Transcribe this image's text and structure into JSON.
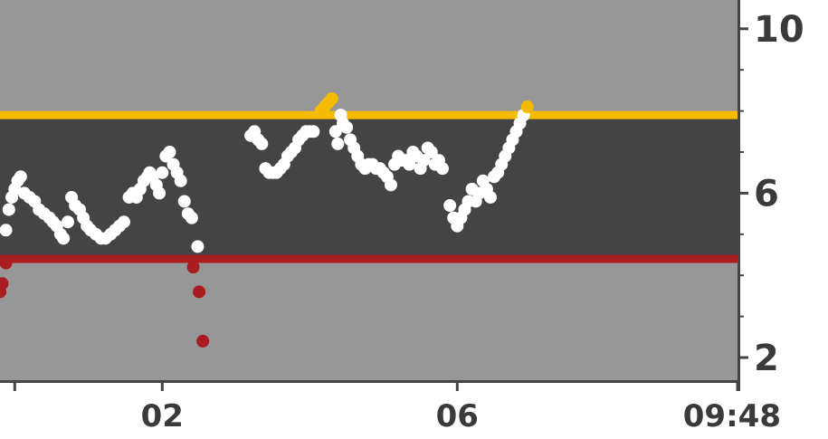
{
  "chart_data": {
    "type": "scatter",
    "title": "",
    "xlabel": "",
    "ylabel": "",
    "x_ticks": [
      {
        "value": 0.0,
        "label": ""
      },
      {
        "value": 2.0,
        "label": "02"
      },
      {
        "value": 6.0,
        "label": "06"
      },
      {
        "value": 9.8,
        "label": "09:48"
      }
    ],
    "y_ticks": [
      {
        "value": 10,
        "label": "10"
      },
      {
        "value": 6,
        "label": "6"
      },
      {
        "value": 2,
        "label": "2"
      }
    ],
    "y_minor_ticks": [
      9,
      8,
      7,
      5,
      4,
      3
    ],
    "xlim": [
      -0.2,
      9.8
    ],
    "ylim": [
      1.45,
      10.7
    ],
    "target_range": {
      "low": 4.4,
      "high": 7.9
    },
    "colors": {
      "outside_band": "#979797",
      "target_band": "#444444",
      "high_line": "#f5bb00",
      "low_line": "#a81c22",
      "in_range_point": "#ffffff",
      "high_point": "#f5bb00",
      "low_point": "#a81c22",
      "axis_text": "#3a3a3a"
    },
    "series": [
      {
        "values": [
          [
            -0.2,
            3.6
          ],
          [
            -0.17,
            3.8
          ],
          [
            -0.12,
            4.3
          ],
          [
            -0.12,
            5.1
          ],
          [
            -0.08,
            5.6
          ],
          [
            -0.04,
            5.9
          ],
          [
            0.0,
            6.1
          ],
          [
            0.04,
            6.3
          ],
          [
            0.08,
            6.4
          ],
          [
            0.13,
            6.0
          ],
          [
            0.2,
            5.9
          ],
          [
            0.27,
            5.8
          ],
          [
            0.33,
            5.6
          ],
          [
            0.4,
            5.5
          ],
          [
            0.47,
            5.4
          ],
          [
            0.52,
            5.3
          ],
          [
            0.57,
            5.2
          ],
          [
            0.62,
            5.0
          ],
          [
            0.66,
            4.9
          ],
          [
            0.72,
            5.3
          ],
          [
            0.77,
            5.9
          ],
          [
            0.82,
            5.7
          ],
          [
            0.88,
            5.6
          ],
          [
            0.93,
            5.4
          ],
          [
            0.98,
            5.2
          ],
          [
            1.03,
            5.1
          ],
          [
            1.1,
            5.0
          ],
          [
            1.17,
            4.9
          ],
          [
            1.23,
            4.9
          ],
          [
            1.3,
            5.0
          ],
          [
            1.36,
            5.1
          ],
          [
            1.42,
            5.2
          ],
          [
            1.48,
            5.3
          ],
          [
            1.55,
            5.9
          ],
          [
            1.6,
            6.0
          ],
          [
            1.65,
            5.9
          ],
          [
            1.7,
            6.1
          ],
          [
            1.75,
            6.3
          ],
          [
            1.8,
            6.4
          ],
          [
            1.83,
            6.5
          ],
          [
            1.87,
            6.4
          ],
          [
            1.92,
            6.2
          ],
          [
            1.96,
            6.0
          ],
          [
            2.0,
            6.5
          ],
          [
            2.05,
            6.9
          ],
          [
            2.1,
            7.0
          ],
          [
            2.15,
            6.7
          ],
          [
            2.2,
            6.5
          ],
          [
            2.25,
            6.3
          ],
          [
            2.3,
            5.8
          ],
          [
            2.35,
            5.5
          ],
          [
            2.4,
            5.4
          ],
          [
            2.48,
            4.7
          ],
          [
            2.42,
            4.2
          ],
          [
            2.5,
            3.6
          ],
          [
            2.55,
            2.4
          ],
          [
            3.2,
            7.4
          ],
          [
            3.25,
            7.5
          ],
          [
            3.3,
            7.3
          ],
          [
            3.35,
            7.2
          ],
          [
            3.4,
            6.6
          ],
          [
            3.45,
            6.5
          ],
          [
            3.5,
            6.5
          ],
          [
            3.55,
            6.5
          ],
          [
            3.6,
            6.6
          ],
          [
            3.65,
            6.7
          ],
          [
            3.7,
            6.9
          ],
          [
            3.75,
            7.0
          ],
          [
            3.8,
            7.1
          ],
          [
            3.85,
            7.3
          ],
          [
            3.9,
            7.4
          ],
          [
            3.95,
            7.5
          ],
          [
            4.0,
            7.5
          ],
          [
            4.05,
            7.5
          ],
          [
            4.15,
            8.0
          ],
          [
            4.2,
            8.1
          ],
          [
            4.25,
            8.2
          ],
          [
            4.3,
            8.3
          ],
          [
            4.35,
            7.5
          ],
          [
            4.38,
            7.2
          ],
          [
            4.42,
            7.9
          ],
          [
            4.45,
            7.7
          ],
          [
            4.5,
            7.6
          ],
          [
            4.55,
            7.3
          ],
          [
            4.6,
            7.1
          ],
          [
            4.65,
            6.9
          ],
          [
            4.7,
            6.7
          ],
          [
            4.75,
            6.6
          ],
          [
            4.8,
            6.7
          ],
          [
            4.85,
            6.7
          ],
          [
            4.9,
            6.6
          ],
          [
            4.95,
            6.6
          ],
          [
            5.0,
            6.5
          ],
          [
            5.05,
            6.4
          ],
          [
            5.1,
            6.2
          ],
          [
            5.15,
            6.7
          ],
          [
            5.2,
            6.9
          ],
          [
            5.25,
            6.8
          ],
          [
            5.3,
            6.8
          ],
          [
            5.35,
            6.7
          ],
          [
            5.4,
            7.0
          ],
          [
            5.45,
            6.9
          ],
          [
            5.5,
            6.6
          ],
          [
            5.55,
            6.8
          ],
          [
            5.6,
            7.1
          ],
          [
            5.65,
            7.0
          ],
          [
            5.7,
            6.7
          ],
          [
            5.75,
            6.8
          ],
          [
            5.8,
            6.6
          ],
          [
            5.9,
            5.7
          ],
          [
            5.95,
            5.4
          ],
          [
            6.0,
            5.2
          ],
          [
            6.05,
            5.4
          ],
          [
            6.1,
            5.6
          ],
          [
            6.15,
            5.8
          ],
          [
            6.2,
            6.1
          ],
          [
            6.25,
            5.8
          ],
          [
            6.3,
            6.0
          ],
          [
            6.35,
            6.3
          ],
          [
            6.4,
            6.1
          ],
          [
            6.45,
            5.9
          ],
          [
            6.5,
            6.4
          ],
          [
            6.55,
            6.5
          ],
          [
            6.6,
            6.7
          ],
          [
            6.65,
            6.9
          ],
          [
            6.7,
            7.1
          ],
          [
            6.75,
            7.3
          ],
          [
            6.8,
            7.5
          ],
          [
            6.85,
            7.7
          ],
          [
            6.9,
            7.9
          ],
          [
            6.95,
            8.1
          ]
        ]
      }
    ]
  }
}
